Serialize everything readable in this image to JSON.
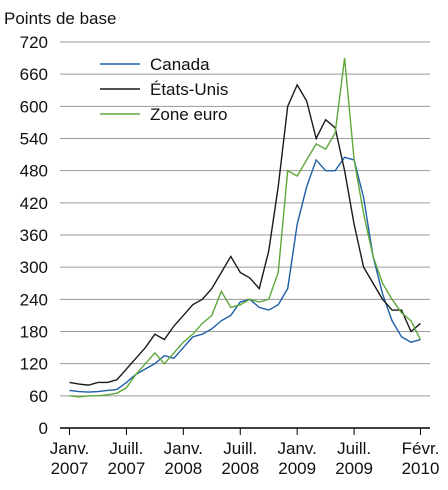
{
  "chart_data": {
    "type": "line",
    "title": "Points de base",
    "x": [
      "2007-01",
      "2007-02",
      "2007-03",
      "2007-04",
      "2007-05",
      "2007-06",
      "2007-07",
      "2007-08",
      "2007-09",
      "2007-10",
      "2007-11",
      "2007-12",
      "2008-01",
      "2008-02",
      "2008-03",
      "2008-04",
      "2008-05",
      "2008-06",
      "2008-07",
      "2008-08",
      "2008-09",
      "2008-10",
      "2008-11",
      "2008-12",
      "2009-01",
      "2009-02",
      "2009-03",
      "2009-04",
      "2009-05",
      "2009-06",
      "2009-07",
      "2009-08",
      "2009-09",
      "2009-10",
      "2009-11",
      "2009-12",
      "2010-01",
      "2010-02"
    ],
    "series": [
      {
        "name": "Canada",
        "color": "#1f5fa8",
        "values": [
          70,
          68,
          67,
          68,
          70,
          72,
          85,
          100,
          110,
          120,
          135,
          130,
          150,
          170,
          175,
          185,
          200,
          210,
          235,
          240,
          225,
          220,
          230,
          260,
          380,
          450,
          500,
          480,
          480,
          505,
          500,
          430,
          320,
          250,
          200,
          170,
          160,
          165
        ]
      },
      {
        "name": "États-Unis",
        "color": "#1a1a1a",
        "values": [
          85,
          82,
          80,
          85,
          85,
          90,
          110,
          130,
          150,
          175,
          165,
          190,
          210,
          230,
          240,
          260,
          290,
          320,
          290,
          280,
          260,
          330,
          450,
          600,
          640,
          610,
          540,
          575,
          560,
          480,
          380,
          300,
          270,
          240,
          220,
          220,
          180,
          195
        ]
      },
      {
        "name": "Zone euro",
        "color": "#5ea83a",
        "values": [
          60,
          58,
          60,
          60,
          62,
          65,
          75,
          100,
          120,
          140,
          120,
          140,
          160,
          175,
          195,
          210,
          255,
          225,
          230,
          240,
          235,
          240,
          290,
          480,
          470,
          500,
          530,
          520,
          550,
          690,
          500,
          400,
          320,
          270,
          240,
          215,
          200,
          165
        ]
      }
    ],
    "xlim": [
      "2006-12",
      "2010-03"
    ],
    "xticks": [
      {
        "value": "2007-01",
        "label": "Janv.\n2007"
      },
      {
        "value": "2007-07",
        "label": "Juill.\n2007"
      },
      {
        "value": "2008-01",
        "label": "Janv.\n2008"
      },
      {
        "value": "2008-07",
        "label": "Juill.\n2008"
      },
      {
        "value": "2009-01",
        "label": "Janv.\n2009"
      },
      {
        "value": "2009-07",
        "label": "Juill.\n2009"
      },
      {
        "value": "2010-02",
        "label": "Févr.\n2010"
      }
    ],
    "ylim": [
      0,
      720
    ],
    "yticks": [
      0,
      60,
      120,
      180,
      240,
      300,
      360,
      420,
      480,
      540,
      600,
      660,
      720
    ],
    "grid": true
  }
}
